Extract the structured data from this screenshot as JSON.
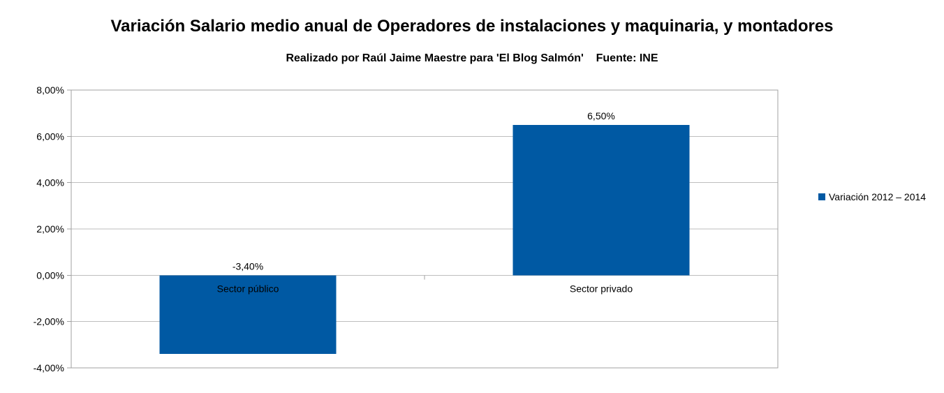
{
  "chart_data": {
    "type": "bar",
    "title": "Variación Salario medio anual de Operadores de instalaciones y maquinaria, y montadores",
    "subtitle": "Realizado por Raúl Jaime Maestre para 'El Blog Salmón'    Fuente: INE",
    "categories": [
      "Sector público",
      "Sector privado"
    ],
    "series": [
      {
        "name": "Variación 2012 – 2014",
        "values": [
          -3.4,
          6.5
        ],
        "value_labels": [
          "-3,40%",
          "6,50%"
        ],
        "color": "#0059A3"
      }
    ],
    "xlabel": "",
    "ylabel": "",
    "ylim": [
      -4,
      8
    ],
    "yticks": [
      8,
      6,
      4,
      2,
      0,
      -2,
      -4
    ],
    "ytick_labels": [
      "8,00%",
      "6,00%",
      "4,00%",
      "2,00%",
      "0,00%",
      "-2,00%",
      "-4,00%"
    ],
    "grid": true,
    "legend_position": "right",
    "gridline_color": "#BEBEBE",
    "axis_color": "#A0A0A0"
  }
}
